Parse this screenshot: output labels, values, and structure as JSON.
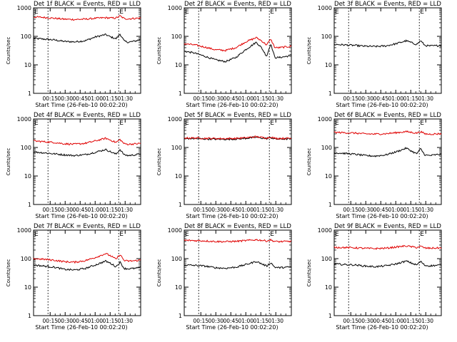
{
  "figure": {
    "ylabel": "Counts/sec",
    "xlabel": "Start Time (26-Feb-10 00:02:20)",
    "colors": {
      "events": "#000000",
      "lld": "#e00000",
      "axes": "#000000",
      "background": "#ffffff"
    }
  },
  "chart_data": [
    {
      "type": "line",
      "title": "Det 1f BLACK = Events, RED = LLD",
      "xlabel": "Start Time (26-Feb-10 00:02:20)",
      "ylabel": "Counts/sec",
      "yscale": "log",
      "ylim": [
        1,
        1000
      ],
      "xlim_min": [
        0,
        104
      ],
      "xticks": [
        "00:15",
        "00:30",
        "00:45",
        "01:00",
        "01:15",
        "01:30"
      ],
      "yticks": [
        "1",
        "10",
        "100",
        "1000"
      ],
      "markers": [
        {
          "t_min": 21,
          "label": ""
        },
        {
          "t_min": 85,
          "label": "E"
        }
      ],
      "top_left_label": "E",
      "series": [
        {
          "name": "Events",
          "color": "#000000",
          "t_min": [
            0,
            10,
            20,
            30,
            40,
            50,
            60,
            70,
            75,
            80,
            84,
            88,
            92,
            100,
            104
          ],
          "values": [
            85,
            80,
            75,
            66,
            64,
            70,
            95,
            115,
            95,
            82,
            120,
            68,
            62,
            70,
            80
          ]
        },
        {
          "name": "LLD",
          "color": "#e00000",
          "t_min": [
            0,
            10,
            20,
            30,
            40,
            50,
            60,
            70,
            75,
            80,
            84,
            88,
            92,
            100,
            104
          ],
          "values": [
            480,
            460,
            430,
            400,
            390,
            400,
            430,
            450,
            440,
            440,
            520,
            420,
            410,
            430,
            440
          ]
        }
      ]
    },
    {
      "type": "line",
      "title": "Det 2f BLACK = Events, RED = LLD",
      "xlabel": "Start Time (26-Feb-10 00:02:20)",
      "ylabel": "Counts/sec",
      "yscale": "log",
      "ylim": [
        1,
        1000
      ],
      "xlim_min": [
        0,
        104
      ],
      "xticks": [
        "00:15",
        "00:30",
        "00:45",
        "01:00",
        "01:15",
        "01:30"
      ],
      "yticks": [
        "1",
        "10",
        "100",
        "1000"
      ],
      "markers": [
        {
          "t_min": 21,
          "label": ""
        },
        {
          "t_min": 85,
          "label": "E"
        }
      ],
      "top_left_label": "E",
      "series": [
        {
          "name": "Events",
          "color": "#000000",
          "t_min": [
            0,
            10,
            20,
            30,
            40,
            50,
            60,
            70,
            75,
            80,
            84,
            88,
            92,
            100,
            104
          ],
          "values": [
            30,
            26,
            20,
            15,
            13,
            18,
            35,
            62,
            40,
            20,
            55,
            18,
            18,
            20,
            22
          ]
        },
        {
          "name": "LLD",
          "color": "#e00000",
          "t_min": [
            0,
            10,
            20,
            30,
            40,
            50,
            60,
            70,
            75,
            80,
            84,
            88,
            92,
            100,
            104
          ],
          "values": [
            55,
            50,
            42,
            34,
            32,
            40,
            65,
            90,
            70,
            50,
            80,
            40,
            40,
            43,
            45
          ]
        }
      ]
    },
    {
      "type": "line",
      "title": "Det 3f BLACK = Events, RED = LLD",
      "xlabel": "Start Time (26-Feb-10 00:02:20)",
      "ylabel": "Counts/sec",
      "yscale": "log",
      "ylim": [
        1,
        1000
      ],
      "xlim_min": [
        0,
        104
      ],
      "xticks": [
        "00:15",
        "00:30",
        "00:45",
        "01:00",
        "01:15",
        "01:30"
      ],
      "yticks": [
        "1",
        "10",
        "100",
        "1000"
      ],
      "markers": [
        {
          "t_min": 21,
          "label": ""
        },
        {
          "t_min": 85,
          "label": "E"
        }
      ],
      "top_left_label": "E",
      "series": [
        {
          "name": "Events",
          "color": "#000000",
          "t_min": [
            0,
            10,
            20,
            30,
            40,
            50,
            60,
            70,
            75,
            80,
            84,
            88,
            92,
            100,
            104
          ],
          "values": [
            52,
            50,
            48,
            45,
            44,
            46,
            55,
            70,
            60,
            52,
            70,
            48,
            46,
            47,
            48
          ]
        }
      ]
    },
    {
      "type": "line",
      "title": "Det 4f BLACK = Events, RED = LLD",
      "xlabel": "Start Time (26-Feb-10 00:02:20)",
      "ylabel": "Counts/sec",
      "yscale": "log",
      "ylim": [
        1,
        1000
      ],
      "xlim_min": [
        0,
        104
      ],
      "xticks": [
        "00:15",
        "00:30",
        "00:45",
        "01:00",
        "01:15",
        "01:30"
      ],
      "yticks": [
        "1",
        "10",
        "100",
        "1000"
      ],
      "markers": [
        {
          "t_min": 21,
          "label": ""
        },
        {
          "t_min": 85,
          "label": "E"
        }
      ],
      "top_left_label": "E",
      "series": [
        {
          "name": "Events",
          "color": "#000000",
          "t_min": [
            0,
            10,
            20,
            30,
            40,
            50,
            60,
            70,
            75,
            80,
            84,
            88,
            92,
            100,
            104
          ],
          "values": [
            70,
            65,
            60,
            55,
            52,
            56,
            68,
            85,
            70,
            58,
            85,
            55,
            52,
            56,
            60
          ]
        },
        {
          "name": "LLD",
          "color": "#e00000",
          "t_min": [
            0,
            10,
            20,
            30,
            40,
            50,
            60,
            70,
            75,
            80,
            84,
            88,
            92,
            100,
            104
          ],
          "values": [
            170,
            160,
            150,
            135,
            130,
            140,
            170,
            210,
            180,
            150,
            190,
            135,
            130,
            135,
            140
          ]
        }
      ]
    },
    {
      "type": "line",
      "title": "Det 5f BLACK = Events, RED = LLD",
      "xlabel": "Start Time (26-Feb-10 00:02:20)",
      "ylabel": "Counts/sec",
      "yscale": "log",
      "ylim": [
        1,
        1000
      ],
      "xlim_min": [
        0,
        104
      ],
      "xticks": [
        "00:15",
        "00:30",
        "00:45",
        "01:00",
        "01:15",
        "01:30"
      ],
      "yticks": [
        "1",
        "10",
        "100",
        "1000"
      ],
      "markers": [
        {
          "t_min": 21,
          "label": ""
        },
        {
          "t_min": 85,
          "label": "E"
        }
      ],
      "top_left_label": "E",
      "series": [
        {
          "name": "Events",
          "color": "#000000",
          "t_min": [
            0,
            10,
            20,
            30,
            40,
            50,
            60,
            70,
            75,
            80,
            84,
            88,
            92,
            100,
            104
          ],
          "values": [
            205,
            205,
            200,
            196,
            195,
            198,
            210,
            230,
            215,
            205,
            222,
            200,
            198,
            200,
            200
          ]
        },
        {
          "name": "LLD",
          "color": "#e00000",
          "t_min": [
            0,
            10,
            20,
            30,
            40,
            50,
            60,
            70,
            75,
            80,
            84,
            88,
            92,
            100,
            104
          ],
          "values": [
            215,
            215,
            210,
            206,
            205,
            208,
            220,
            240,
            225,
            215,
            232,
            210,
            208,
            210,
            210
          ]
        }
      ]
    },
    {
      "type": "line",
      "title": "Det 6f BLACK = Events, RED = LLD",
      "xlabel": "Start Time (26-Feb-10 00:02:20)",
      "ylabel": "Counts/sec",
      "yscale": "log",
      "ylim": [
        1,
        1000
      ],
      "xlim_min": [
        0,
        104
      ],
      "xticks": [
        "00:15",
        "00:30",
        "00:45",
        "01:00",
        "01:15",
        "01:30"
      ],
      "yticks": [
        "1",
        "10",
        "100",
        "1000"
      ],
      "markers": [
        {
          "t_min": 21,
          "label": ""
        },
        {
          "t_min": 85,
          "label": "E"
        }
      ],
      "top_left_label": "E",
      "series": [
        {
          "name": "Events",
          "color": "#000000",
          "t_min": [
            0,
            10,
            20,
            30,
            40,
            50,
            60,
            70,
            75,
            80,
            84,
            88,
            92,
            100,
            104
          ],
          "values": [
            65,
            62,
            58,
            52,
            50,
            55,
            70,
            95,
            75,
            60,
            90,
            55,
            52,
            56,
            58
          ]
        },
        {
          "name": "LLD",
          "color": "#e00000",
          "t_min": [
            0,
            10,
            20,
            30,
            40,
            50,
            60,
            70,
            75,
            80,
            84,
            88,
            92,
            100,
            104
          ],
          "values": [
            340,
            330,
            320,
            300,
            295,
            305,
            330,
            360,
            340,
            320,
            360,
            300,
            295,
            300,
            305
          ]
        }
      ]
    },
    {
      "type": "line",
      "title": "Det 7f BLACK = Events, RED = LLD",
      "xlabel": "Start Time (26-Feb-10 00:02:20)",
      "ylabel": "Counts/sec",
      "yscale": "log",
      "ylim": [
        1,
        1000
      ],
      "xlim_min": [
        0,
        104
      ],
      "xticks": [
        "00:15",
        "00:30",
        "00:45",
        "01:00",
        "01:15",
        "01:30"
      ],
      "yticks": [
        "1",
        "10",
        "100",
        "1000"
      ],
      "markers": [
        {
          "t_min": 21,
          "label": ""
        },
        {
          "t_min": 85,
          "label": "E"
        }
      ],
      "top_left_label": "E",
      "series": [
        {
          "name": "Events",
          "color": "#000000",
          "t_min": [
            0,
            10,
            20,
            30,
            40,
            50,
            60,
            70,
            75,
            80,
            84,
            88,
            92,
            100,
            104
          ],
          "values": [
            60,
            55,
            50,
            42,
            40,
            45,
            60,
            82,
            68,
            52,
            75,
            45,
            44,
            46,
            50
          ]
        },
        {
          "name": "LLD",
          "color": "#e00000",
          "t_min": [
            0,
            10,
            20,
            30,
            40,
            50,
            60,
            70,
            75,
            80,
            84,
            88,
            92,
            100,
            104
          ],
          "values": [
            100,
            95,
            88,
            78,
            75,
            85,
            110,
            150,
            125,
            95,
            140,
            85,
            82,
            85,
            90
          ]
        }
      ]
    },
    {
      "type": "line",
      "title": "Det 8f BLACK = Events, RED = LLD",
      "xlabel": "Start Time (26-Feb-10 00:02:20)",
      "ylabel": "Counts/sec",
      "yscale": "log",
      "ylim": [
        1,
        1000
      ],
      "xlim_min": [
        0,
        104
      ],
      "xticks": [
        "00:15",
        "00:30",
        "00:45",
        "01:00",
        "01:15",
        "01:30"
      ],
      "yticks": [
        "1",
        "10",
        "100",
        "1000"
      ],
      "markers": [
        {
          "t_min": 21,
          "label": ""
        },
        {
          "t_min": 85,
          "label": "E"
        }
      ],
      "top_left_label": "E",
      "series": [
        {
          "name": "Events",
          "color": "#000000",
          "t_min": [
            0,
            10,
            20,
            30,
            40,
            50,
            60,
            70,
            75,
            80,
            84,
            88,
            92,
            100,
            104
          ],
          "values": [
            60,
            58,
            55,
            48,
            46,
            50,
            62,
            80,
            66,
            55,
            72,
            50,
            48,
            50,
            52
          ]
        },
        {
          "name": "LLD",
          "color": "#e00000",
          "t_min": [
            0,
            10,
            20,
            30,
            40,
            50,
            60,
            70,
            75,
            80,
            84,
            88,
            92,
            100,
            104
          ],
          "values": [
            440,
            430,
            420,
            400,
            395,
            405,
            430,
            460,
            440,
            420,
            450,
            400,
            395,
            400,
            405
          ]
        }
      ]
    },
    {
      "type": "line",
      "title": "Det 9f BLACK = Events, RED = LLD",
      "xlabel": "Start Time (26-Feb-10 00:02:20)",
      "ylabel": "Counts/sec",
      "yscale": "log",
      "ylim": [
        1,
        1000
      ],
      "xlim_min": [
        0,
        104
      ],
      "xticks": [
        "00:15",
        "00:30",
        "00:45",
        "01:00",
        "01:15",
        "01:30"
      ],
      "yticks": [
        "1",
        "10",
        "100",
        "1000"
      ],
      "markers": [
        {
          "t_min": 21,
          "label": ""
        },
        {
          "t_min": 85,
          "label": "E"
        }
      ],
      "top_left_label": "E",
      "series": [
        {
          "name": "Events",
          "color": "#000000",
          "t_min": [
            0,
            10,
            20,
            30,
            40,
            50,
            60,
            70,
            75,
            80,
            84,
            88,
            92,
            100,
            104
          ],
          "values": [
            65,
            62,
            60,
            55,
            52,
            56,
            65,
            82,
            70,
            60,
            80,
            58,
            56,
            58,
            60
          ]
        },
        {
          "name": "LLD",
          "color": "#e00000",
          "t_min": [
            0,
            10,
            20,
            30,
            40,
            50,
            60,
            70,
            75,
            80,
            84,
            88,
            92,
            100,
            104
          ],
          "values": [
            250,
            245,
            240,
            230,
            226,
            232,
            255,
            280,
            262,
            245,
            270,
            235,
            232,
            235,
            238
          ]
        }
      ]
    }
  ]
}
